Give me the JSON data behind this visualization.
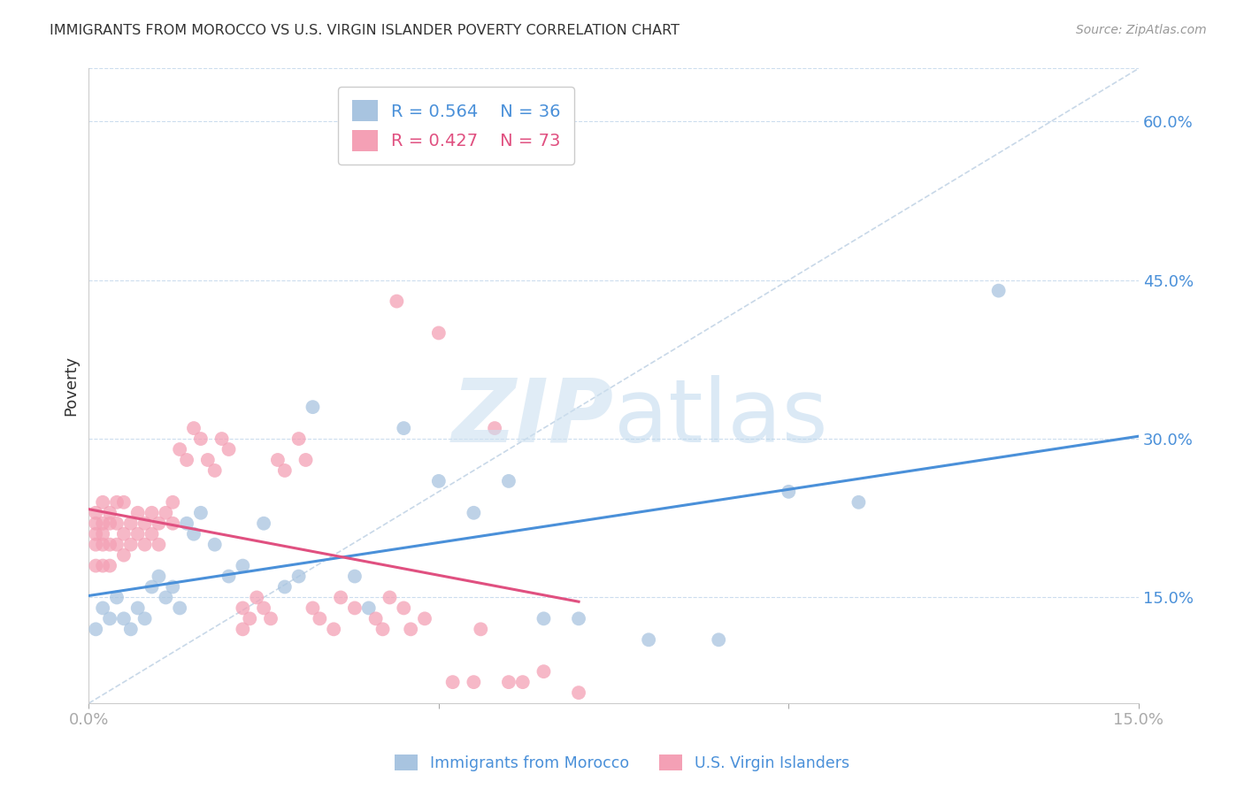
{
  "title": "IMMIGRANTS FROM MOROCCO VS U.S. VIRGIN ISLANDER POVERTY CORRELATION CHART",
  "source": "Source: ZipAtlas.com",
  "ylabel_label": "Poverty",
  "xlim": [
    0.0,
    0.15
  ],
  "ylim": [
    0.05,
    0.65
  ],
  "yticks": [
    0.15,
    0.3,
    0.45,
    0.6
  ],
  "ytick_labels": [
    "15.0%",
    "30.0%",
    "45.0%",
    "60.0%"
  ],
  "xticks": [
    0.0,
    0.05,
    0.1,
    0.15
  ],
  "xtick_labels": [
    "0.0%",
    "",
    "",
    "15.0%"
  ],
  "blue_R": 0.564,
  "blue_N": 36,
  "pink_R": 0.427,
  "pink_N": 73,
  "blue_color": "#a8c4e0",
  "pink_color": "#f4a0b5",
  "blue_line_color": "#4a90d9",
  "pink_line_color": "#e05080",
  "diagonal_line_color": "#c8d8e8",
  "blue_scatter_x": [
    0.001,
    0.002,
    0.003,
    0.004,
    0.005,
    0.006,
    0.007,
    0.008,
    0.009,
    0.01,
    0.011,
    0.012,
    0.013,
    0.014,
    0.015,
    0.016,
    0.018,
    0.02,
    0.022,
    0.025,
    0.028,
    0.03,
    0.032,
    0.038,
    0.04,
    0.045,
    0.05,
    0.055,
    0.06,
    0.065,
    0.07,
    0.08,
    0.09,
    0.1,
    0.11,
    0.13
  ],
  "blue_scatter_y": [
    0.12,
    0.14,
    0.13,
    0.15,
    0.13,
    0.12,
    0.14,
    0.13,
    0.16,
    0.17,
    0.15,
    0.16,
    0.14,
    0.22,
    0.21,
    0.23,
    0.2,
    0.17,
    0.18,
    0.22,
    0.16,
    0.17,
    0.33,
    0.17,
    0.14,
    0.31,
    0.26,
    0.23,
    0.26,
    0.13,
    0.13,
    0.11,
    0.11,
    0.25,
    0.24,
    0.44
  ],
  "pink_scatter_x": [
    0.001,
    0.001,
    0.001,
    0.001,
    0.001,
    0.002,
    0.002,
    0.002,
    0.002,
    0.002,
    0.003,
    0.003,
    0.003,
    0.003,
    0.004,
    0.004,
    0.004,
    0.005,
    0.005,
    0.005,
    0.006,
    0.006,
    0.007,
    0.007,
    0.008,
    0.008,
    0.009,
    0.009,
    0.01,
    0.01,
    0.011,
    0.012,
    0.012,
    0.013,
    0.014,
    0.015,
    0.016,
    0.017,
    0.018,
    0.019,
    0.02,
    0.022,
    0.022,
    0.023,
    0.024,
    0.025,
    0.026,
    0.027,
    0.028,
    0.03,
    0.031,
    0.032,
    0.033,
    0.035,
    0.036,
    0.038,
    0.04,
    0.041,
    0.042,
    0.043,
    0.044,
    0.045,
    0.046,
    0.048,
    0.05,
    0.052,
    0.055,
    0.056,
    0.058,
    0.06,
    0.062,
    0.065,
    0.07
  ],
  "pink_scatter_y": [
    0.21,
    0.23,
    0.22,
    0.2,
    0.18,
    0.24,
    0.22,
    0.2,
    0.18,
    0.21,
    0.23,
    0.22,
    0.2,
    0.18,
    0.24,
    0.22,
    0.2,
    0.24,
    0.21,
    0.19,
    0.22,
    0.2,
    0.23,
    0.21,
    0.22,
    0.2,
    0.23,
    0.21,
    0.22,
    0.2,
    0.23,
    0.24,
    0.22,
    0.29,
    0.28,
    0.31,
    0.3,
    0.28,
    0.27,
    0.3,
    0.29,
    0.14,
    0.12,
    0.13,
    0.15,
    0.14,
    0.13,
    0.28,
    0.27,
    0.3,
    0.28,
    0.14,
    0.13,
    0.12,
    0.15,
    0.14,
    0.57,
    0.13,
    0.12,
    0.15,
    0.43,
    0.14,
    0.12,
    0.13,
    0.4,
    0.07,
    0.07,
    0.12,
    0.31,
    0.07,
    0.07,
    0.08,
    0.06
  ]
}
